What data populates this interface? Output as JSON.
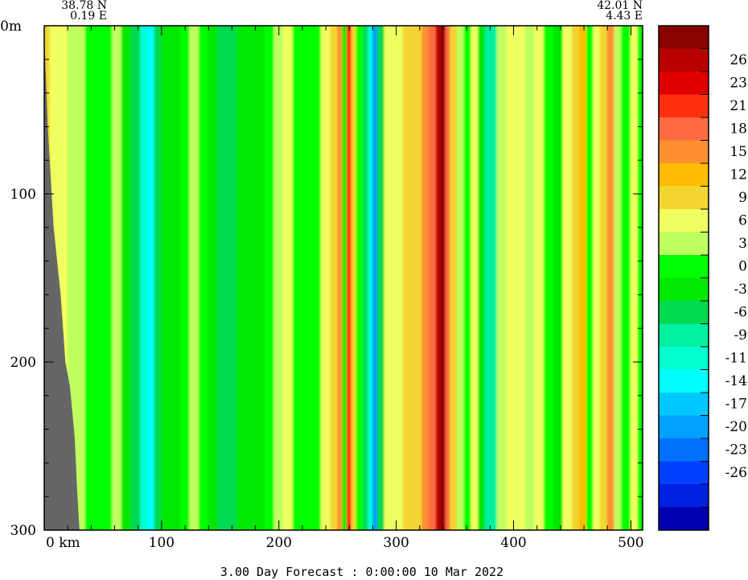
{
  "chart_data": {
    "type": "heatmap",
    "title": "",
    "footer": "3.00 Day Forecast :  0:00:00  10 Mar 2022",
    "start_point": {
      "lat": "38.78 N",
      "lon": "0.19 E"
    },
    "end_point": {
      "lat": "42.01 N",
      "lon": "4.43 E"
    },
    "x_axis": {
      "unit": "km",
      "ticks": [
        0,
        100,
        200,
        300,
        400,
        500
      ],
      "range": [
        0,
        510
      ]
    },
    "y_axis": {
      "unit": "m",
      "ticks": [
        0,
        100,
        200,
        300
      ],
      "range": [
        0,
        300
      ],
      "inverted": true
    },
    "colorbar": {
      "labels": [
        26,
        23,
        21,
        18,
        15,
        12,
        9,
        6,
        3,
        0,
        -3,
        -6,
        -9,
        -11,
        -14,
        -17,
        -20,
        -23,
        -26
      ],
      "colors": [
        "#8b0000",
        "#b80000",
        "#e00000",
        "#ff3010",
        "#ff6a40",
        "#ff9030",
        "#ffbc00",
        "#f2d530",
        "#f0ff60",
        "#c0ff60",
        "#00ff00",
        "#00e800",
        "#00d850",
        "#00f0a0",
        "#00ffd0",
        "#00ffff",
        "#00c8ff",
        "#00a0ff",
        "#0070ff",
        "#0040ff",
        "#0020e0",
        "#0000b0"
      ]
    },
    "columns": [
      {
        "x": 0,
        "v": 8
      },
      {
        "x": 5,
        "v": 5
      },
      {
        "x": 12,
        "v": 3
      },
      {
        "x": 20,
        "v": 1
      },
      {
        "x": 28,
        "v": 0
      },
      {
        "x": 35,
        "v": -3
      },
      {
        "x": 42,
        "v": -2
      },
      {
        "x": 50,
        "v": -3
      },
      {
        "x": 58,
        "v": 1
      },
      {
        "x": 66,
        "v": -4
      },
      {
        "x": 74,
        "v": -8
      },
      {
        "x": 82,
        "v": -14
      },
      {
        "x": 88,
        "v": -17
      },
      {
        "x": 94,
        "v": -8
      },
      {
        "x": 100,
        "v": -6
      },
      {
        "x": 108,
        "v": -4
      },
      {
        "x": 116,
        "v": -3
      },
      {
        "x": 124,
        "v": 1
      },
      {
        "x": 132,
        "v": -3
      },
      {
        "x": 140,
        "v": -6
      },
      {
        "x": 148,
        "v": -8
      },
      {
        "x": 156,
        "v": -9
      },
      {
        "x": 164,
        "v": -5
      },
      {
        "x": 172,
        "v": -4
      },
      {
        "x": 180,
        "v": -6
      },
      {
        "x": 188,
        "v": -3
      },
      {
        "x": 196,
        "v": 2
      },
      {
        "x": 204,
        "v": 5
      },
      {
        "x": 212,
        "v": -3
      },
      {
        "x": 220,
        "v": -3
      },
      {
        "x": 228,
        "v": -2
      },
      {
        "x": 236,
        "v": 4
      },
      {
        "x": 244,
        "v": 8
      },
      {
        "x": 250,
        "v": 12
      },
      {
        "x": 254,
        "v": -6
      },
      {
        "x": 258,
        "v": 20
      },
      {
        "x": 262,
        "v": 6
      },
      {
        "x": 266,
        "v": -3
      },
      {
        "x": 272,
        "v": -8
      },
      {
        "x": 276,
        "v": -14
      },
      {
        "x": 280,
        "v": -22
      },
      {
        "x": 284,
        "v": -9
      },
      {
        "x": 290,
        "v": 5
      },
      {
        "x": 298,
        "v": 4
      },
      {
        "x": 306,
        "v": 6
      },
      {
        "x": 314,
        "v": 8
      },
      {
        "x": 322,
        "v": 12
      },
      {
        "x": 328,
        "v": 16
      },
      {
        "x": 334,
        "v": 24
      },
      {
        "x": 338,
        "v": 26
      },
      {
        "x": 342,
        "v": 16
      },
      {
        "x": 346,
        "v": 6
      },
      {
        "x": 352,
        "v": 1
      },
      {
        "x": 358,
        "v": -3
      },
      {
        "x": 364,
        "v": 3
      },
      {
        "x": 370,
        "v": -4
      },
      {
        "x": 376,
        "v": -11
      },
      {
        "x": 380,
        "v": -10
      },
      {
        "x": 386,
        "v": 1
      },
      {
        "x": 394,
        "v": 4
      },
      {
        "x": 402,
        "v": 5
      },
      {
        "x": 410,
        "v": 2
      },
      {
        "x": 418,
        "v": 4
      },
      {
        "x": 426,
        "v": -3
      },
      {
        "x": 434,
        "v": -4
      },
      {
        "x": 442,
        "v": 3
      },
      {
        "x": 450,
        "v": 6
      },
      {
        "x": 456,
        "v": 10
      },
      {
        "x": 462,
        "v": -3
      },
      {
        "x": 468,
        "v": 3
      },
      {
        "x": 474,
        "v": 8
      },
      {
        "x": 480,
        "v": 13
      },
      {
        "x": 486,
        "v": 1
      },
      {
        "x": 492,
        "v": -3
      },
      {
        "x": 500,
        "v": 5
      },
      {
        "x": 506,
        "v": -1
      }
    ],
    "seafloor": [
      {
        "x": 0,
        "depth": 5
      },
      {
        "x": 3,
        "depth": 60
      },
      {
        "x": 8,
        "depth": 120
      },
      {
        "x": 14,
        "depth": 160
      },
      {
        "x": 18,
        "depth": 200
      },
      {
        "x": 22,
        "depth": 215
      },
      {
        "x": 26,
        "depth": 245
      },
      {
        "x": 28,
        "depth": 275
      },
      {
        "x": 30,
        "depth": 300
      }
    ]
  }
}
